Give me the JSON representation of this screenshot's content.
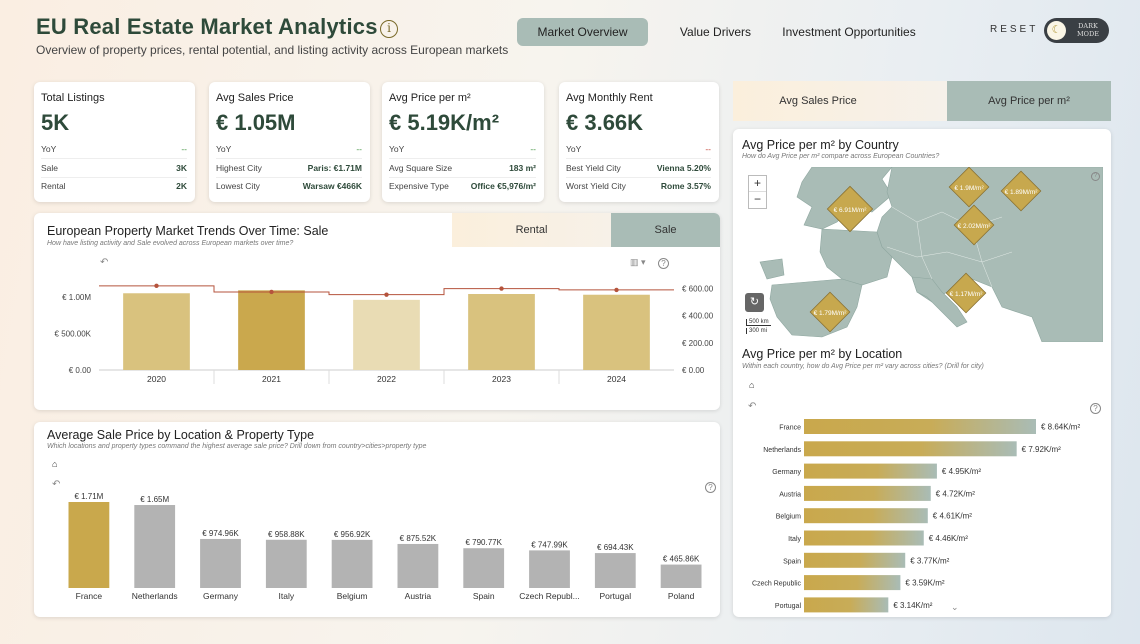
{
  "header": {
    "title": "EU Real Estate Market Analytics",
    "subtitle": "Overview of property prices, rental potential, and listing activity across European markets",
    "nav": [
      "Market Overview",
      "Value Drivers",
      "Investment Opportunities"
    ],
    "reset": "RESET",
    "dark_mode_label": "DARK MODE"
  },
  "kpis": [
    {
      "title": "Total Listings",
      "value": "5K",
      "rows": [
        [
          "YoY",
          "--"
        ],
        [
          "Sale",
          "3K"
        ],
        [
          "Rental",
          "2K"
        ]
      ]
    },
    {
      "title": "Avg Sales Price",
      "value": "€ 1.05M",
      "rows": [
        [
          "YoY",
          "--"
        ],
        [
          "Highest City",
          "Paris: €1.71M"
        ],
        [
          "Lowest City",
          "Warsaw €466K"
        ]
      ]
    },
    {
      "title": "Avg Price per m²",
      "value": "€ 5.19K/m²",
      "rows": [
        [
          "YoY",
          "--"
        ],
        [
          "Avg Square Size",
          "183 m²"
        ],
        [
          "Expensive Type",
          "Office €5,976/m²"
        ]
      ]
    },
    {
      "title": "Avg Monthly Rent",
      "value": "€ 3.66K",
      "rows": [
        [
          "YoY",
          "--"
        ],
        [
          "Best Yield City",
          "Vienna 5.20%"
        ],
        [
          "Worst Yield City",
          "Rome 3.57%"
        ]
      ]
    }
  ],
  "trends": {
    "title": "European Property Market Trends Over Time: Sale",
    "subtitle": "How have listing activity and Sale evolved across European markets over time?",
    "tabs": [
      "Rental",
      "Sale"
    ]
  },
  "right_tabs": [
    "Avg Sales Price",
    "Avg Price per m²"
  ],
  "map": {
    "title": "Avg Price per m² by Country",
    "subtitle": "How do Avg Price per m² compare across European Countries?",
    "labels": [
      "€ 6.91M/m²",
      "€ 1.9M/m²",
      "€ 1.89M/m²",
      "€ 2.02M/m²",
      "€ 1.17M/m²",
      "€ 1.79M/m²"
    ],
    "zoom_in": "+",
    "zoom_out": "−",
    "scale_km": "500 km",
    "scale_mi": "300 mi"
  },
  "location_chart": {
    "title": "Avg Price per m² by Location",
    "subtitle": "Within each country, how do Avg Price per m² vary across cities? (Drill for city)"
  },
  "sale_chart": {
    "title": "Average Sale Price by Location & Property Type",
    "subtitle": "Which locations and property types command the highest average sale price? Drill down from country>cities>property type"
  },
  "chart_data": [
    {
      "type": "bar",
      "name": "trends",
      "categories": [
        "2020",
        "2021",
        "2022",
        "2023",
        "2024"
      ],
      "values": [
        1050000,
        1090000,
        960000,
        1040000,
        1030000
      ],
      "line_values": [
        620,
        575,
        555,
        600,
        590
      ],
      "marker_values": [
        620,
        575,
        555,
        600,
        590
      ],
      "ylim": [
        0,
        1300000
      ],
      "y_ticks": [
        "€ 0.00",
        "€ 500.00K",
        "€ 1.00M"
      ],
      "y2lim": [
        0,
        700
      ],
      "y2_ticks": [
        "€ 0.00",
        "€ 200.00",
        "€ 400.00",
        "€ 600.00"
      ],
      "bar_colors": [
        "#d9c27e",
        "#caa84d",
        "#e9dcb4",
        "#d9c27e",
        "#d9c27e"
      ]
    },
    {
      "type": "bar",
      "name": "sale_by_location",
      "categories": [
        "France",
        "Netherlands",
        "Germany",
        "Italy",
        "Belgium",
        "Austria",
        "Spain",
        "Czech Republ...",
        "Portugal",
        "Poland"
      ],
      "values": [
        1710000,
        1650000,
        974960,
        958880,
        956920,
        875520,
        790770,
        747990,
        694430,
        465860
      ],
      "labels": [
        "€ 1.71M",
        "€ 1.65M",
        "€ 974.96K",
        "€ 958.88K",
        "€ 956.92K",
        "€ 875.52K",
        "€ 790.77K",
        "€ 747.99K",
        "€ 694.43K",
        "€ 465.86K"
      ],
      "highlight_color": "#c9a84c",
      "bar_color": "#b3b3b3"
    },
    {
      "type": "bar",
      "name": "price_per_m2_by_location",
      "categories": [
        "France",
        "Netherlands",
        "Germany",
        "Austria",
        "Belgium",
        "Italy",
        "Spain",
        "Czech Republic",
        "Portugal"
      ],
      "values": [
        8.64,
        7.92,
        4.95,
        4.72,
        4.61,
        4.46,
        3.77,
        3.59,
        3.14
      ],
      "labels": [
        "€ 8.64K/m²",
        "€ 7.92K/m²",
        "€ 4.95K/m²",
        "€ 4.72K/m²",
        "€ 4.61K/m²",
        "€ 4.46K/m²",
        "€ 3.77K/m²",
        "€ 3.59K/m²",
        "€ 3.14K/m²"
      ],
      "color_start": "#c9a84c",
      "color_end": "#a9bcb6"
    }
  ]
}
